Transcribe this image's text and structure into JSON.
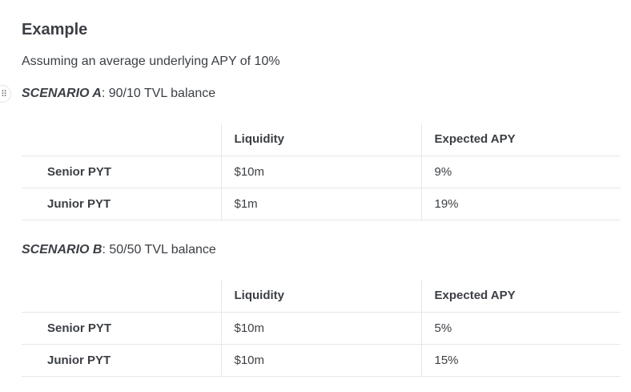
{
  "heading": "Example",
  "intro": "Assuming an average underlying APY of 10%",
  "scenario_a": {
    "name": "SCENARIO A",
    "desc": ": 90/10 TVL balance",
    "columns": [
      "",
      "Liquidity",
      "Expected APY"
    ],
    "rows": [
      {
        "label": "Senior PYT",
        "liquidity": "$10m",
        "apy": "9%"
      },
      {
        "label": "Junior PYT",
        "liquidity": "$1m",
        "apy": "19%"
      }
    ]
  },
  "scenario_b": {
    "name": "SCENARIO B",
    "desc": ": 50/50 TVL balance",
    "columns": [
      "",
      "Liquidity",
      "Expected APY"
    ],
    "rows": [
      {
        "label": "Senior PYT",
        "liquidity": "$10m",
        "apy": "5%"
      },
      {
        "label": "Junior PYT",
        "liquidity": "$10m",
        "apy": "15%"
      }
    ]
  },
  "icons": {
    "drag_handle": "drag-handle-icon"
  }
}
